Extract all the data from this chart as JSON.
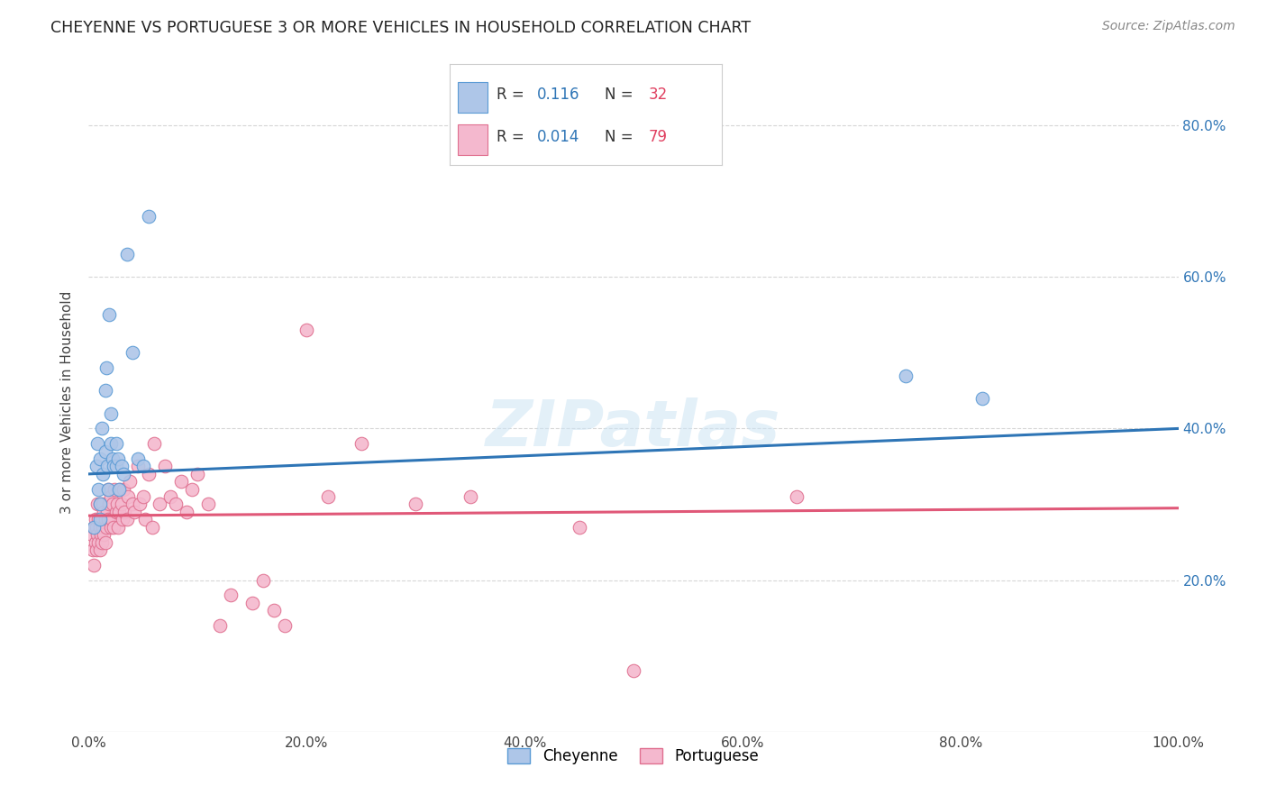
{
  "title": "CHEYENNE VS PORTUGUESE 3 OR MORE VEHICLES IN HOUSEHOLD CORRELATION CHART",
  "source": "Source: ZipAtlas.com",
  "ylabel": "3 or more Vehicles in Household",
  "cheyenne_R": "0.116",
  "cheyenne_N": "32",
  "portuguese_R": "0.014",
  "portuguese_N": "79",
  "cheyenne_color": "#aec6e8",
  "cheyenne_edge_color": "#5b9bd5",
  "cheyenne_line_color": "#2e75b6",
  "portuguese_color": "#f4b8ce",
  "portuguese_edge_color": "#e07090",
  "portuguese_line_color": "#e05878",
  "watermark": "ZIPatlas",
  "cheyenne_x": [
    0.005,
    0.007,
    0.008,
    0.009,
    0.01,
    0.01,
    0.01,
    0.012,
    0.013,
    0.015,
    0.015,
    0.016,
    0.017,
    0.018,
    0.019,
    0.02,
    0.02,
    0.022,
    0.023,
    0.025,
    0.025,
    0.027,
    0.028,
    0.03,
    0.032,
    0.035,
    0.04,
    0.045,
    0.05,
    0.055,
    0.75,
    0.82
  ],
  "cheyenne_y": [
    0.27,
    0.35,
    0.38,
    0.32,
    0.36,
    0.28,
    0.3,
    0.4,
    0.34,
    0.45,
    0.37,
    0.48,
    0.35,
    0.32,
    0.55,
    0.38,
    0.42,
    0.36,
    0.35,
    0.35,
    0.38,
    0.36,
    0.32,
    0.35,
    0.34,
    0.63,
    0.5,
    0.36,
    0.35,
    0.68,
    0.47,
    0.44
  ],
  "portuguese_x": [
    0.003,
    0.004,
    0.005,
    0.005,
    0.006,
    0.006,
    0.007,
    0.007,
    0.008,
    0.008,
    0.009,
    0.009,
    0.01,
    0.01,
    0.01,
    0.011,
    0.012,
    0.012,
    0.013,
    0.013,
    0.014,
    0.014,
    0.015,
    0.015,
    0.016,
    0.017,
    0.018,
    0.018,
    0.019,
    0.02,
    0.02,
    0.021,
    0.022,
    0.023,
    0.024,
    0.025,
    0.026,
    0.027,
    0.028,
    0.029,
    0.03,
    0.031,
    0.032,
    0.033,
    0.035,
    0.036,
    0.038,
    0.04,
    0.042,
    0.045,
    0.047,
    0.05,
    0.052,
    0.055,
    0.058,
    0.06,
    0.065,
    0.07,
    0.075,
    0.08,
    0.085,
    0.09,
    0.095,
    0.1,
    0.11,
    0.12,
    0.13,
    0.15,
    0.16,
    0.17,
    0.18,
    0.2,
    0.22,
    0.25,
    0.3,
    0.35,
    0.45,
    0.5,
    0.65
  ],
  "portuguese_y": [
    0.26,
    0.24,
    0.27,
    0.22,
    0.28,
    0.25,
    0.24,
    0.27,
    0.26,
    0.3,
    0.25,
    0.28,
    0.24,
    0.27,
    0.3,
    0.26,
    0.25,
    0.28,
    0.27,
    0.3,
    0.26,
    0.29,
    0.25,
    0.28,
    0.27,
    0.29,
    0.28,
    0.32,
    0.3,
    0.27,
    0.31,
    0.28,
    0.3,
    0.27,
    0.32,
    0.29,
    0.3,
    0.27,
    0.29,
    0.32,
    0.3,
    0.28,
    0.32,
    0.29,
    0.28,
    0.31,
    0.33,
    0.3,
    0.29,
    0.35,
    0.3,
    0.31,
    0.28,
    0.34,
    0.27,
    0.38,
    0.3,
    0.35,
    0.31,
    0.3,
    0.33,
    0.29,
    0.32,
    0.34,
    0.3,
    0.14,
    0.18,
    0.17,
    0.2,
    0.16,
    0.14,
    0.53,
    0.31,
    0.38,
    0.3,
    0.31,
    0.27,
    0.08,
    0.31
  ],
  "xlim": [
    0.0,
    1.0
  ],
  "ylim": [
    0.0,
    0.87
  ],
  "yticks": [
    0.2,
    0.4,
    0.6,
    0.8
  ],
  "xticks": [
    0.0,
    0.2,
    0.4,
    0.6,
    0.8,
    1.0
  ],
  "cheyenne_trend": [
    0.34,
    0.4
  ],
  "portuguese_trend": [
    0.285,
    0.295
  ]
}
